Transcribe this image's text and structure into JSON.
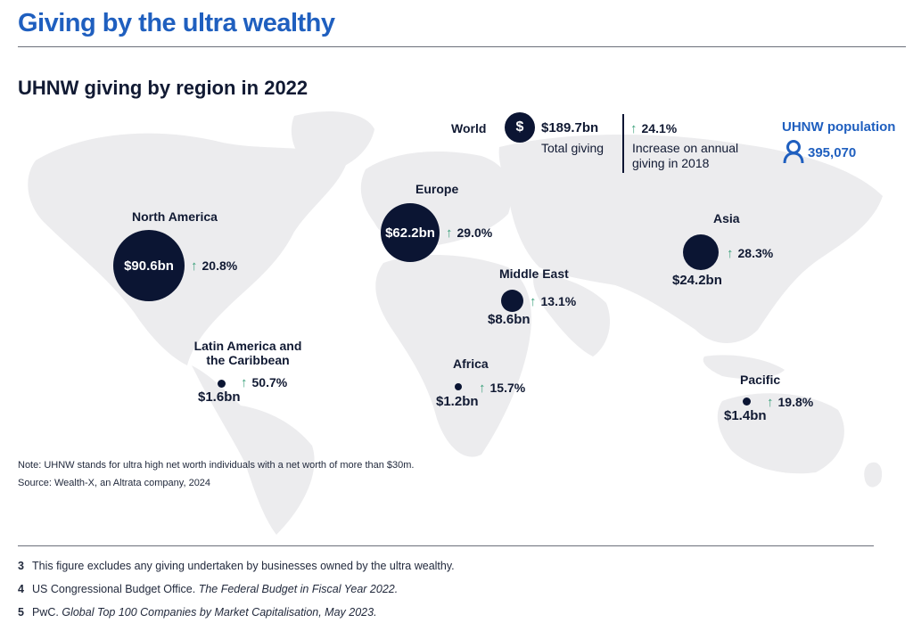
{
  "header": {
    "title": "Giving by the ultra wealthy",
    "subtitle": "UHNW giving by region in 2022"
  },
  "colors": {
    "title": "#1f5fbf",
    "bubble": "#0b1533",
    "arrow": "#3aa07a",
    "map": "#ececee"
  },
  "world": {
    "label": "World",
    "icon": "dollar-icon",
    "icon_symbol": "$",
    "total_value": "$189.7bn",
    "total_label": "Total giving",
    "growth": "24.1%",
    "growth_label_line1": "Increase on annual",
    "growth_label_line2": "giving in 2018",
    "population_label": "UHNW population",
    "population_icon": "person-icon",
    "population_value": "395,070"
  },
  "regions": {
    "north_america": {
      "name": "North America",
      "value": "$90.6bn",
      "giving_bn": 90.6,
      "growth": "20.8%"
    },
    "europe": {
      "name": "Europe",
      "value": "$62.2bn",
      "giving_bn": 62.2,
      "growth": "29.0%"
    },
    "asia": {
      "name": "Asia",
      "value": "$24.2bn",
      "giving_bn": 24.2,
      "growth": "28.3%"
    },
    "middle_east": {
      "name": "Middle East",
      "value": "$8.6bn",
      "giving_bn": 8.6,
      "growth": "13.1%"
    },
    "latin_america": {
      "name_line1": "Latin America and",
      "name_line2": "the Caribbean",
      "value": "$1.6bn",
      "giving_bn": 1.6,
      "growth": "50.7%"
    },
    "africa": {
      "name": "Africa",
      "value": "$1.2bn",
      "giving_bn": 1.2,
      "growth": "15.7%"
    },
    "pacific": {
      "name": "Pacific",
      "value": "$1.4bn",
      "giving_bn": 1.4,
      "growth": "19.8%"
    }
  },
  "arrow_symbol": "↑",
  "notes": {
    "note": "Note: UHNW stands for ultra high net worth individuals with a net worth of more than $30m.",
    "source": "Source: Wealth-X, an Altrata company, 2024"
  },
  "footnotes": [
    {
      "num": "3",
      "text": "This figure excludes any giving undertaken by businesses owned by the ultra wealthy.",
      "italic": ""
    },
    {
      "num": "4",
      "text": "US Congressional Budget Office. ",
      "italic": "The Federal Budget in Fiscal Year 2022."
    },
    {
      "num": "5",
      "text": "PwC. ",
      "italic": "Global Top 100 Companies by Market Capitalisation, May 2023."
    }
  ]
}
